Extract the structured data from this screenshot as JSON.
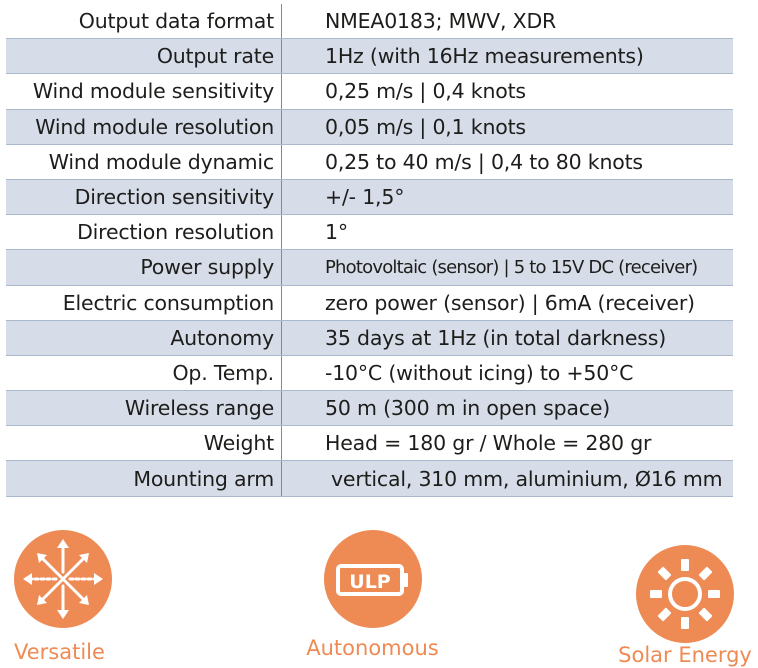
{
  "specs": {
    "rows": [
      {
        "label": "Output data format",
        "value": "NMEA0183; MWV, XDR"
      },
      {
        "label": "Output rate",
        "value": "1Hz (with 16Hz measurements)"
      },
      {
        "label": "Wind module sensitivity",
        "value": "0,25 m/s | 0,4 knots"
      },
      {
        "label": "Wind module resolution",
        "value": "0,05 m/s | 0,1 knots"
      },
      {
        "label": "Wind module dynamic",
        "value": "0,25 to 40 m/s | 0,4 to 80 knots"
      },
      {
        "label": "Direction sensitivity",
        "value": "+/- 1,5°"
      },
      {
        "label": "Direction resolution",
        "value": "1°"
      },
      {
        "label": "Power supply",
        "value": "Photovoltaic (sensor) | 5 to 15V DC (receiver)"
      },
      {
        "label": "Electric consumption",
        "value": "zero power (sensor) | 6mA (receiver)"
      },
      {
        "label": "Autonomy",
        "value": "35 days at 1Hz (in total darkness)"
      },
      {
        "label": "Op. Temp.",
        "value": "-10°C (without icing) to +50°C"
      },
      {
        "label": "Wireless range",
        "value": "50 m (300 m in open space)"
      },
      {
        "label": "Weight",
        "value": "Head = 180 gr / Whole = 280 gr"
      },
      {
        "label": "Mounting arm",
        "value": "vertical, 310 mm, aluminium, Ø16 mm"
      }
    ]
  },
  "features": {
    "versatile": {
      "label": "Versatile",
      "icon": "arrows-burst-icon"
    },
    "autonomous": {
      "label": "Autonomous",
      "icon": "ulp-battery-icon",
      "badge": "ULP"
    },
    "solar": {
      "label": "Solar Energy",
      "icon": "sun-icon"
    }
  },
  "colors": {
    "accent": "#ee8a53",
    "row_shade": "#d6dce8",
    "text": "#1d1d1b"
  }
}
